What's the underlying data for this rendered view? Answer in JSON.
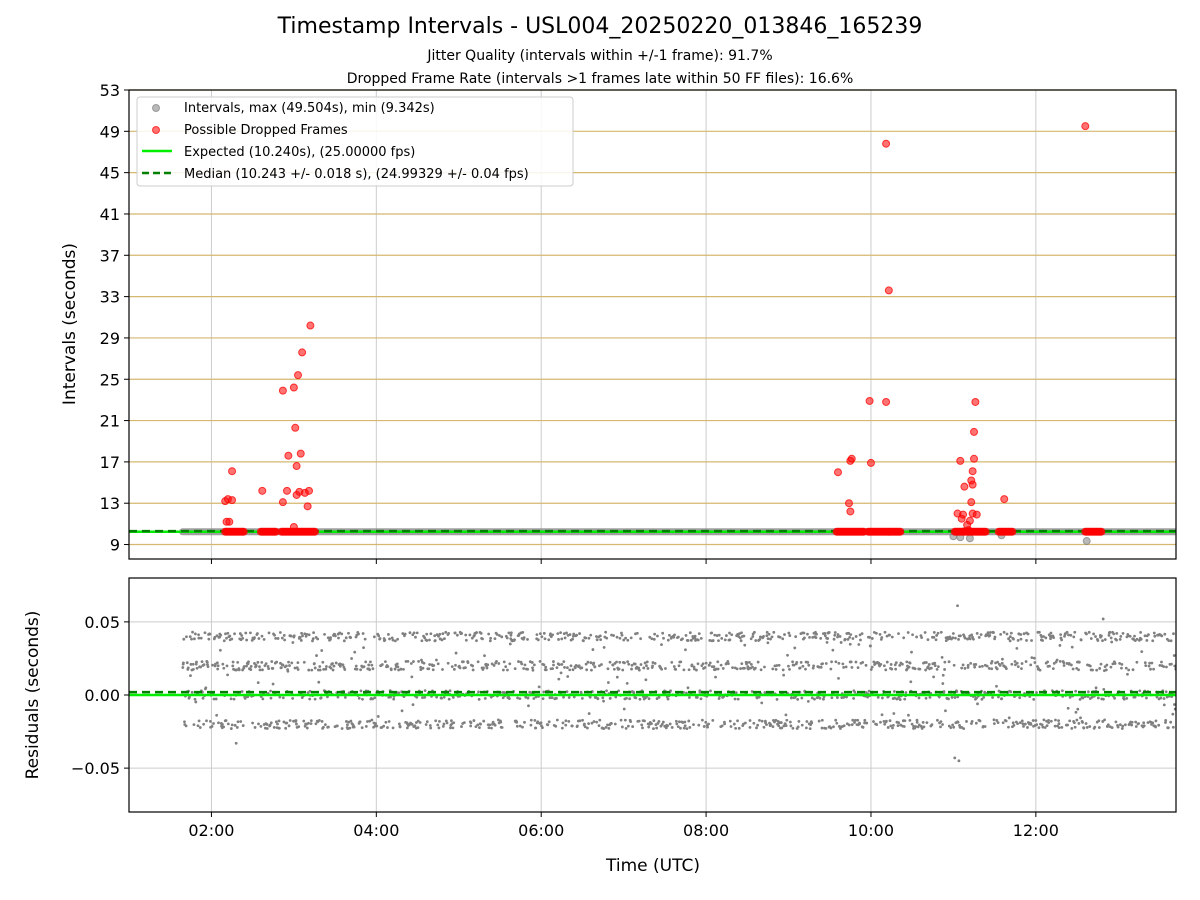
{
  "title": "Timestamp Intervals - USL004_20250220_013846_165239",
  "subtitle_1": "Jitter Quality (intervals within +/-1 frame): 91.7%",
  "subtitle_2": "Dropped Frame Rate (intervals >1 frames late within 50 FF files): 16.6%",
  "colors": {
    "intervals": "#808080",
    "dropped": "#ff0000",
    "expected": "#00ee00",
    "median": "#007f00",
    "hgrid": "#d4b870",
    "vgrid": "#cccccc"
  },
  "chart_data": [
    {
      "type": "scatter",
      "ylabel": "Intervals (seconds)",
      "xlim": [
        "01:00",
        "13:42"
      ],
      "ylim": [
        7.6,
        53
      ],
      "y_ticks": [
        "9",
        "13",
        "17",
        "21",
        "25",
        "29",
        "33",
        "37",
        "41",
        "45",
        "49",
        "53"
      ],
      "grid": true,
      "legend_position": "top-left",
      "legend": [
        "Intervals, max (49.504s), min (9.342s)",
        "Possible Dropped Frames",
        "Expected (10.240s), (25.00000 fps)",
        "Median (10.243 +/- 0.018 s), (24.99329 +/- 0.04 fps)"
      ],
      "intervals_span": {
        "x_start": "01:39",
        "x_end": "13:42",
        "y": 10.24
      },
      "expected_line": 10.24,
      "median_line": 10.243,
      "intervals_low_outliers": [
        {
          "x": "11:00",
          "y": 9.8
        },
        {
          "x": "11:05",
          "y": 9.7
        },
        {
          "x": "11:08",
          "y": 10.3
        },
        {
          "x": "11:12",
          "y": 9.6
        },
        {
          "x": "11:35",
          "y": 9.9
        },
        {
          "x": "12:37",
          "y": 9.34
        }
      ],
      "dropped_points": [
        {
          "x": "02:10",
          "y": 13.2
        },
        {
          "x": "02:11",
          "y": 11.2
        },
        {
          "x": "02:12",
          "y": 13.4
        },
        {
          "x": "02:13",
          "y": 11.2
        },
        {
          "x": "02:15",
          "y": 13.3
        },
        {
          "x": "02:15",
          "y": 16.1
        },
        {
          "x": "02:37",
          "y": 14.2
        },
        {
          "x": "02:52",
          "y": 13.1
        },
        {
          "x": "02:52",
          "y": 23.9
        },
        {
          "x": "02:55",
          "y": 14.2
        },
        {
          "x": "02:56",
          "y": 17.6
        },
        {
          "x": "03:00",
          "y": 10.7
        },
        {
          "x": "03:00",
          "y": 24.2
        },
        {
          "x": "03:01",
          "y": 20.3
        },
        {
          "x": "03:02",
          "y": 16.6
        },
        {
          "x": "03:02",
          "y": 13.8
        },
        {
          "x": "03:03",
          "y": 25.4
        },
        {
          "x": "03:04",
          "y": 14.1
        },
        {
          "x": "03:05",
          "y": 17.8
        },
        {
          "x": "03:06",
          "y": 27.6
        },
        {
          "x": "03:08",
          "y": 14.0
        },
        {
          "x": "03:10",
          "y": 12.7
        },
        {
          "x": "03:11",
          "y": 14.2
        },
        {
          "x": "03:12",
          "y": 30.2
        },
        {
          "x": "09:36",
          "y": 16.0
        },
        {
          "x": "09:44",
          "y": 13.0
        },
        {
          "x": "09:45",
          "y": 12.2
        },
        {
          "x": "09:45",
          "y": 17.1
        },
        {
          "x": "09:46",
          "y": 17.3
        },
        {
          "x": "09:59",
          "y": 22.9
        },
        {
          "x": "10:00",
          "y": 16.9
        },
        {
          "x": "10:11",
          "y": 47.8
        },
        {
          "x": "10:11",
          "y": 22.8
        },
        {
          "x": "10:13",
          "y": 33.6
        },
        {
          "x": "11:03",
          "y": 12.0
        },
        {
          "x": "11:05",
          "y": 17.1
        },
        {
          "x": "11:06",
          "y": 11.5
        },
        {
          "x": "11:07",
          "y": 11.9
        },
        {
          "x": "11:08",
          "y": 14.6
        },
        {
          "x": "11:10",
          "y": 10.9
        },
        {
          "x": "11:11",
          "y": 10.4
        },
        {
          "x": "11:12",
          "y": 11.3
        },
        {
          "x": "11:13",
          "y": 15.2
        },
        {
          "x": "11:13",
          "y": 13.1
        },
        {
          "x": "11:14",
          "y": 16.1
        },
        {
          "x": "11:14",
          "y": 14.8
        },
        {
          "x": "11:14",
          "y": 12.0
        },
        {
          "x": "11:15",
          "y": 17.3
        },
        {
          "x": "11:15",
          "y": 19.9
        },
        {
          "x": "11:16",
          "y": 22.8
        },
        {
          "x": "11:17",
          "y": 11.9
        },
        {
          "x": "11:37",
          "y": 13.4
        },
        {
          "x": "12:36",
          "y": 49.5
        }
      ],
      "dropped_bands": [
        {
          "x_start": "02:10",
          "x_end": "02:24",
          "y": 10.24
        },
        {
          "x_start": "02:36",
          "x_end": "02:47",
          "y": 10.24
        },
        {
          "x_start": "02:51",
          "x_end": "03:16",
          "y": 10.24
        },
        {
          "x_start": "09:35",
          "x_end": "09:55",
          "y": 10.24
        },
        {
          "x_start": "09:58",
          "x_end": "10:22",
          "y": 10.24
        },
        {
          "x_start": "11:01",
          "x_end": "11:24",
          "y": 10.24
        },
        {
          "x_start": "11:33",
          "x_end": "11:43",
          "y": 10.24
        },
        {
          "x_start": "12:36",
          "x_end": "12:48",
          "y": 10.24
        }
      ]
    },
    {
      "type": "scatter",
      "xlabel": "Time (UTC)",
      "ylabel": "Residuals (seconds)",
      "xlim": [
        "01:00",
        "13:42"
      ],
      "ylim": [
        -0.08,
        0.08
      ],
      "y_ticks": [
        "0.05",
        "0.00",
        "−0.05"
      ],
      "x_ticks": [
        "02:00",
        "04:00",
        "06:00",
        "08:00",
        "10:00",
        "12:00"
      ],
      "grid": true,
      "residual_levels": [
        -0.02,
        0.0,
        0.02,
        0.04
      ],
      "residual_range": [
        -0.045,
        0.061
      ],
      "residual_x_start": "01:39",
      "residual_x_end": "13:42",
      "expected_line": 0.0,
      "median_line": 0.002
    }
  ]
}
